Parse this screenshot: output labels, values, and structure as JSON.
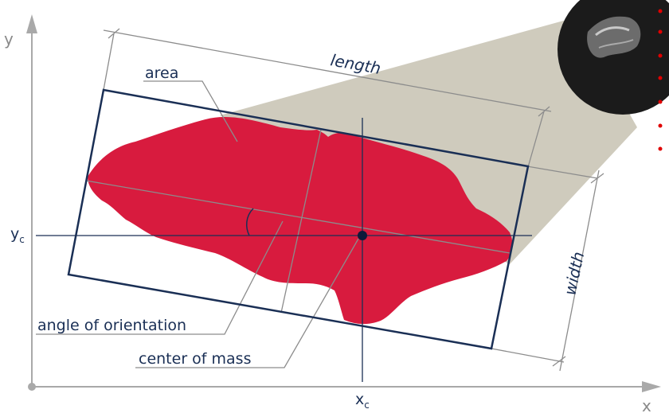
{
  "labels": {
    "area": "area",
    "length": "length",
    "width": "width",
    "angle": "angle of orientation",
    "center": "center of mass",
    "x_axis": "x",
    "y_axis": "y",
    "xc_base": "x",
    "xc_sub": "c",
    "yc_base": "y",
    "yc_sub": "c"
  },
  "colors": {
    "shape_fill": "#d81b3e",
    "frame_stroke": "#1a2f55",
    "axis_gray": "#a9a9a9",
    "guide_gray": "#8c8c8c",
    "beam_fill": "#cfcbbd",
    "dot_red": "#e00000"
  }
}
